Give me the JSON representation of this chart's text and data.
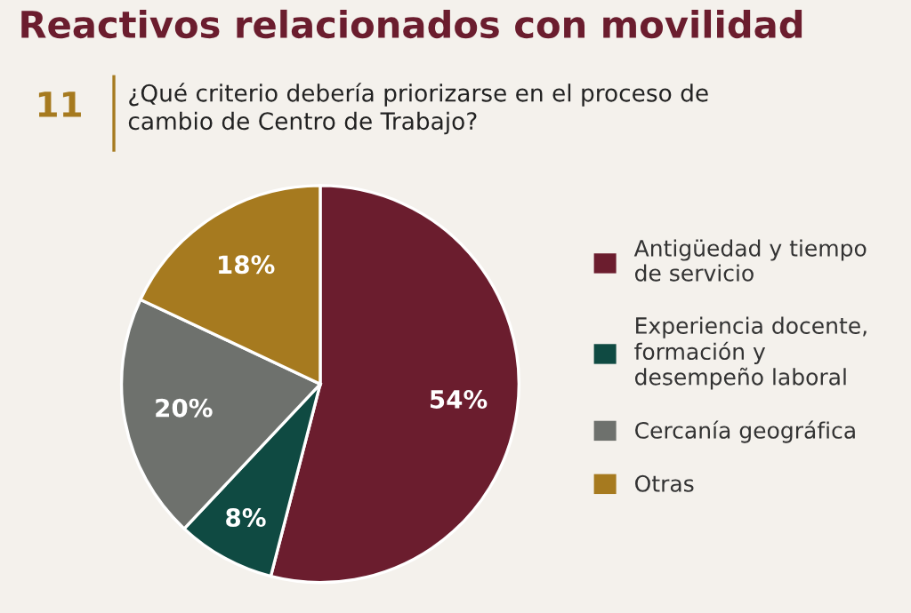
{
  "chart_data": {
    "type": "pie",
    "title": "Reactivos relacionados con movilidad",
    "subtitle": "¿Qué criterio debería priorizarse en el proceso de\ncambio de Centro de Trabajo?",
    "annotations": [
      "11"
    ],
    "categories": [
      "Antigüedad y tiempo\nde servicio",
      "Experiencia docente,\nformación y\ndesempeño laboral",
      "Cercanía geográfica",
      "Otras"
    ],
    "values": [
      54,
      8,
      20,
      18
    ],
    "colors": [
      "#6b1d2e",
      "#0f4a42",
      "#6e716d",
      "#a67a1f"
    ],
    "value_labels": [
      "54%",
      "8%",
      "20%",
      "18%"
    ],
    "legend": "right"
  }
}
